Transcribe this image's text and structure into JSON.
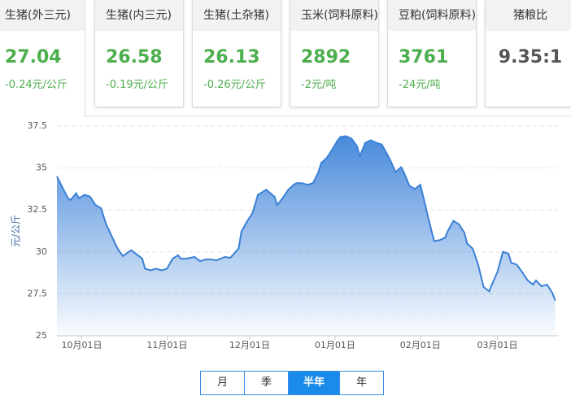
{
  "cards": [
    {
      "title": "生猪(外三元)",
      "price": "27.04",
      "change": "-0.24元/公斤"
    },
    {
      "title": "生猪(内三元)",
      "price": "26.58",
      "change": "-0.19元/公斤"
    },
    {
      "title": "生猪(土杂猪)",
      "price": "26.13",
      "change": "-0.26元/公斤"
    },
    {
      "title": "玉米(饲料原料)",
      "price": "2892",
      "change": "-2元/吨"
    },
    {
      "title": "豆粕(饲料原料)",
      "price": "3761",
      "change": "-24元/吨"
    },
    {
      "title": "猪粮比",
      "price": "9.35:1"
    }
  ],
  "chart_data": {
    "type": "area",
    "ylabel": "元/公斤",
    "color": "#3a80d6",
    "x": [
      -9,
      -5,
      -4,
      -2,
      -1,
      1,
      3,
      5,
      7,
      9,
      11,
      13,
      15,
      17,
      18,
      20,
      22,
      23,
      25,
      27,
      29,
      31,
      33,
      35,
      36,
      38,
      41,
      43,
      45,
      47,
      49,
      52,
      54,
      57,
      58,
      60,
      62,
      64,
      65,
      67,
      70,
      71,
      73,
      75,
      77,
      78,
      80,
      82,
      84,
      86,
      87,
      89,
      91,
      93,
      94,
      96,
      98,
      100,
      101,
      103,
      105,
      107,
      109,
      110,
      112,
      114,
      116,
      117,
      119,
      121,
      123,
      125,
      126,
      128,
      130,
      132,
      133,
      135,
      137,
      139,
      140,
      142,
      144,
      146,
      148,
      149,
      151,
      153,
      155,
      156,
      158,
      160,
      162,
      164,
      165,
      167,
      169,
      171,
      172
    ],
    "values": [
      34.5,
      33.2,
      33.1,
      33.5,
      33.2,
      33.4,
      33.3,
      32.8,
      32.6,
      31.6,
      30.9,
      30.2,
      29.75,
      30.0,
      30.1,
      29.85,
      29.6,
      29.0,
      28.9,
      29.0,
      28.9,
      29.0,
      29.6,
      29.8,
      29.6,
      29.6,
      29.7,
      29.45,
      29.55,
      29.55,
      29.5,
      29.7,
      29.65,
      30.2,
      31.2,
      31.8,
      32.3,
      33.4,
      33.5,
      33.7,
      33.3,
      32.8,
      33.2,
      33.7,
      34.0,
      34.1,
      34.1,
      34.0,
      34.1,
      34.75,
      35.3,
      35.6,
      36.1,
      36.65,
      36.85,
      36.9,
      36.75,
      36.3,
      35.7,
      36.5,
      36.65,
      36.5,
      36.4,
      36.1,
      35.5,
      34.75,
      35.05,
      34.75,
      33.95,
      33.75,
      34.0,
      32.65,
      31.95,
      30.65,
      30.7,
      30.85,
      31.25,
      31.85,
      31.65,
      31.15,
      30.5,
      30.2,
      29.25,
      27.9,
      27.65,
      28.05,
      28.8,
      30.0,
      29.9,
      29.35,
      29.25,
      28.8,
      28.3,
      28.05,
      28.3,
      27.95,
      28.05,
      27.55,
      27.1
    ],
    "xlim": [
      -9,
      173
    ],
    "xticks": [
      {
        "value": 0,
        "label": "10月01日"
      },
      {
        "value": 31,
        "label": "11月01日"
      },
      {
        "value": 61,
        "label": "12月01日"
      },
      {
        "value": 92,
        "label": "01月01日"
      },
      {
        "value": 123,
        "label": "02月01日"
      },
      {
        "value": 151,
        "label": "03月01日"
      }
    ],
    "ylim": [
      25,
      37.5
    ],
    "yticks": [
      25,
      27.5,
      30,
      32.5,
      35,
      37.5
    ],
    "grid": true
  },
  "buttons": [
    {
      "label": "月"
    },
    {
      "label": "季"
    },
    {
      "label": "半年",
      "active": true
    },
    {
      "label": "年"
    }
  ]
}
